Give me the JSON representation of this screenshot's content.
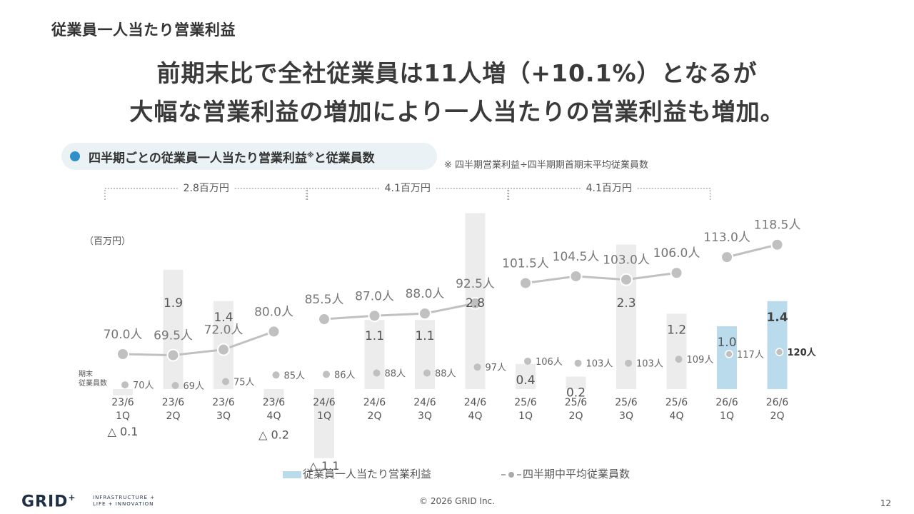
{
  "page": {
    "title": "従業員一人当たり営業利益",
    "headline_1": "前期末比で全社従業員は11人増（+10.1%）となるが",
    "headline_2": "大幅な営業利益の増加により一人当たりの営業利益も増加。",
    "section_title": "四半期ごとの従業員一人当たり営業利益",
    "section_title_mark": "※",
    "section_title_tail": "と従業員数",
    "note": "※ 四半期営業利益÷四半期期首期末平均従業員数",
    "unit_label": "（百万円）",
    "period_end_label_1": "期末",
    "period_end_label_2": "従業員数",
    "copyright": "© 2026 GRID Inc.",
    "page_number": "12",
    "logo_text": "GRID",
    "logo_plus": "+",
    "logo_sub_1": "INFRASTRUCTURE +",
    "logo_sub_2": "LIFE + INNOVATION"
  },
  "colors": {
    "bar_past": "#ececec",
    "bar_current": "#b9dbeb",
    "line": "#c0c0c0",
    "text": "#555555",
    "accent_dot": "#2f8fc8"
  },
  "chart_data": {
    "type": "bar",
    "categories": [
      "23/6 1Q",
      "23/6 2Q",
      "23/6 3Q",
      "23/6 4Q",
      "24/6 1Q",
      "24/6 2Q",
      "24/6 3Q",
      "24/6 4Q",
      "25/6 1Q",
      "25/6 2Q",
      "25/6 3Q",
      "25/6 4Q",
      "26/6 1Q",
      "26/6 2Q"
    ],
    "category_line1": [
      "23/6",
      "23/6",
      "23/6",
      "23/6",
      "24/6",
      "24/6",
      "24/6",
      "24/6",
      "25/6",
      "25/6",
      "25/6",
      "25/6",
      "26/6",
      "26/6"
    ],
    "category_line2": [
      "1Q",
      "2Q",
      "3Q",
      "4Q",
      "1Q",
      "2Q",
      "3Q",
      "4Q",
      "1Q",
      "2Q",
      "3Q",
      "4Q",
      "1Q",
      "2Q"
    ],
    "series": [
      {
        "name": "従業員一人当たり営業利益",
        "kind": "bar",
        "values": [
          -0.1,
          1.9,
          1.4,
          -0.2,
          -1.1,
          1.1,
          1.1,
          2.8,
          0.4,
          0.2,
          2.3,
          1.2,
          1.0,
          1.4
        ],
        "labels": [
          "△ 0.1",
          "1.9",
          "1.4",
          "△ 0.2",
          "△ 1.1",
          "1.1",
          "1.1",
          "2.8",
          "0.4",
          "0.2",
          "2.3",
          "1.2",
          "1.0",
          "1.4"
        ],
        "highlight_from_index": 12
      },
      {
        "name": "四半期中平均従業員数",
        "kind": "line",
        "values": [
          70.0,
          69.5,
          72.0,
          80.0,
          85.5,
          87.0,
          88.0,
          92.5,
          101.5,
          104.5,
          103.0,
          106.0,
          113.0,
          118.5
        ],
        "labels": [
          "70.0人",
          "69.5人",
          "72.0人",
          "80.0人",
          "85.5人",
          "87.0人",
          "88.0人",
          "92.5人",
          "101.5人",
          "104.5人",
          "103.0人",
          "106.0人",
          "113.0人",
          "118.5人"
        ],
        "segments": [
          [
            0,
            3
          ],
          [
            4,
            7
          ],
          [
            8,
            11
          ],
          [
            12,
            13
          ]
        ]
      },
      {
        "name": "期末従業員数",
        "kind": "dots",
        "values": [
          70,
          69,
          75,
          85,
          86,
          88,
          88,
          97,
          106,
          103,
          103,
          109,
          117,
          120
        ],
        "labels": [
          "70人",
          "69人",
          "75人",
          "85人",
          "86人",
          "88人",
          "88人",
          "97人",
          "106人",
          "103人",
          "103人",
          "109人",
          "117人",
          "120人"
        ]
      }
    ],
    "annual_brackets": [
      {
        "label": "2.8百万円",
        "from": 0,
        "to": 3
      },
      {
        "label": "4.1百万円",
        "from": 4,
        "to": 7
      },
      {
        "label": "4.1百万円",
        "from": 8,
        "to": 11
      }
    ],
    "ylabel": "（百万円）",
    "legend": [
      "従業員一人当たり営業利益",
      "四半期中平均従業員数"
    ],
    "legend_placement": "bottom-center"
  }
}
